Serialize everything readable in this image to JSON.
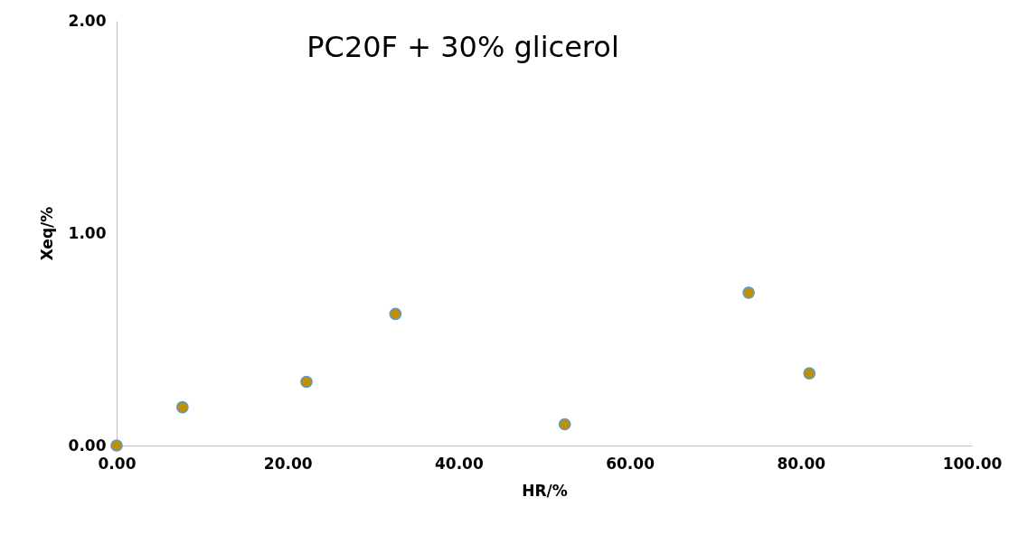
{
  "chart_data": {
    "type": "scatter",
    "title": "PC20F + 30% glicerol",
    "xlabel": "HR/%",
    "ylabel": "Xeq/%",
    "x": [
      0,
      7.7,
      22.2,
      32.6,
      52.4,
      73.9,
      81.0
    ],
    "series": [
      {
        "color": "#bf9000",
        "values": [
          0,
          0.18,
          0.3,
          0.62,
          0.1,
          0.72,
          0.34
        ]
      }
    ],
    "marker": "circle",
    "grid": false,
    "xlim": [
      0,
      100
    ],
    "ylim": [
      0,
      2
    ],
    "xticks": [
      {
        "value": 0,
        "label": "0.00"
      },
      {
        "value": 20,
        "label": "20.00"
      },
      {
        "value": 40,
        "label": "40.00"
      },
      {
        "value": 60,
        "label": "60.00"
      },
      {
        "value": 80,
        "label": "80.00"
      },
      {
        "value": 100,
        "label": "100.00"
      }
    ],
    "yticks": [
      {
        "value": 0,
        "label": "0.00"
      },
      {
        "value": 1,
        "label": "1.00"
      },
      {
        "value": 2,
        "label": "2.00"
      }
    ]
  }
}
